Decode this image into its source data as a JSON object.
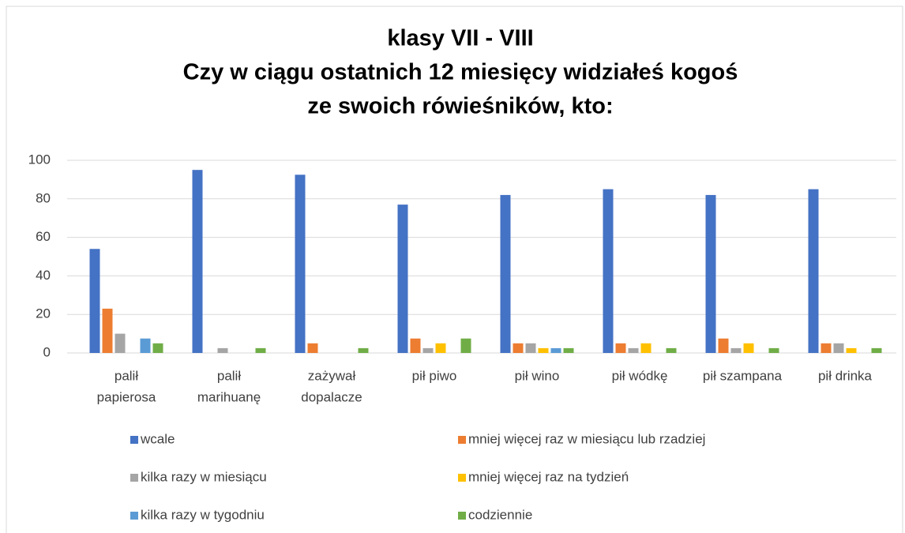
{
  "chart_data": {
    "type": "bar",
    "title": [
      "klasy VII - VIII",
      "Czy w ciągu ostatnich 12 miesięcy widziałeś kogoś",
      "ze swoich rówieśników, kto:"
    ],
    "categories": [
      [
        "palił",
        "papierosa"
      ],
      [
        "palił",
        "marihuanę"
      ],
      [
        "zażywał",
        "dopalacze"
      ],
      [
        "pił piwo"
      ],
      [
        "pił wino"
      ],
      [
        "pił wódkę"
      ],
      [
        "pił szampana"
      ],
      [
        "pił drinka"
      ]
    ],
    "series": [
      {
        "name": "wcale",
        "color": "#4472c4",
        "values": [
          54,
          95,
          92.5,
          77,
          82,
          85,
          82,
          85
        ]
      },
      {
        "name": "mniej więcej raz w miesiącu lub rzadziej",
        "color": "#ed7d31",
        "values": [
          23,
          0,
          5,
          7.5,
          5,
          5,
          7.5,
          5
        ]
      },
      {
        "name": "kilka razy w miesiącu",
        "color": "#a5a5a5",
        "values": [
          10,
          2.5,
          0,
          2.5,
          5,
          2.5,
          2.5,
          5
        ]
      },
      {
        "name": "mniej więcej raz na tydzień",
        "color": "#ffc000",
        "values": [
          0,
          0,
          0,
          5,
          2.5,
          5,
          5,
          2.5
        ]
      },
      {
        "name": "kilka razy w tygodniu",
        "color": "#5b9bd5",
        "values": [
          7.5,
          0,
          0,
          0,
          2.5,
          0,
          0,
          0
        ]
      },
      {
        "name": "codziennie",
        "color": "#70ad47",
        "values": [
          5,
          2.5,
          2.5,
          7.5,
          2.5,
          2.5,
          2.5,
          2.5
        ]
      }
    ],
    "ylim": [
      0,
      100
    ],
    "yticks": [
      0,
      20,
      40,
      60,
      80,
      100
    ],
    "grid": true
  }
}
